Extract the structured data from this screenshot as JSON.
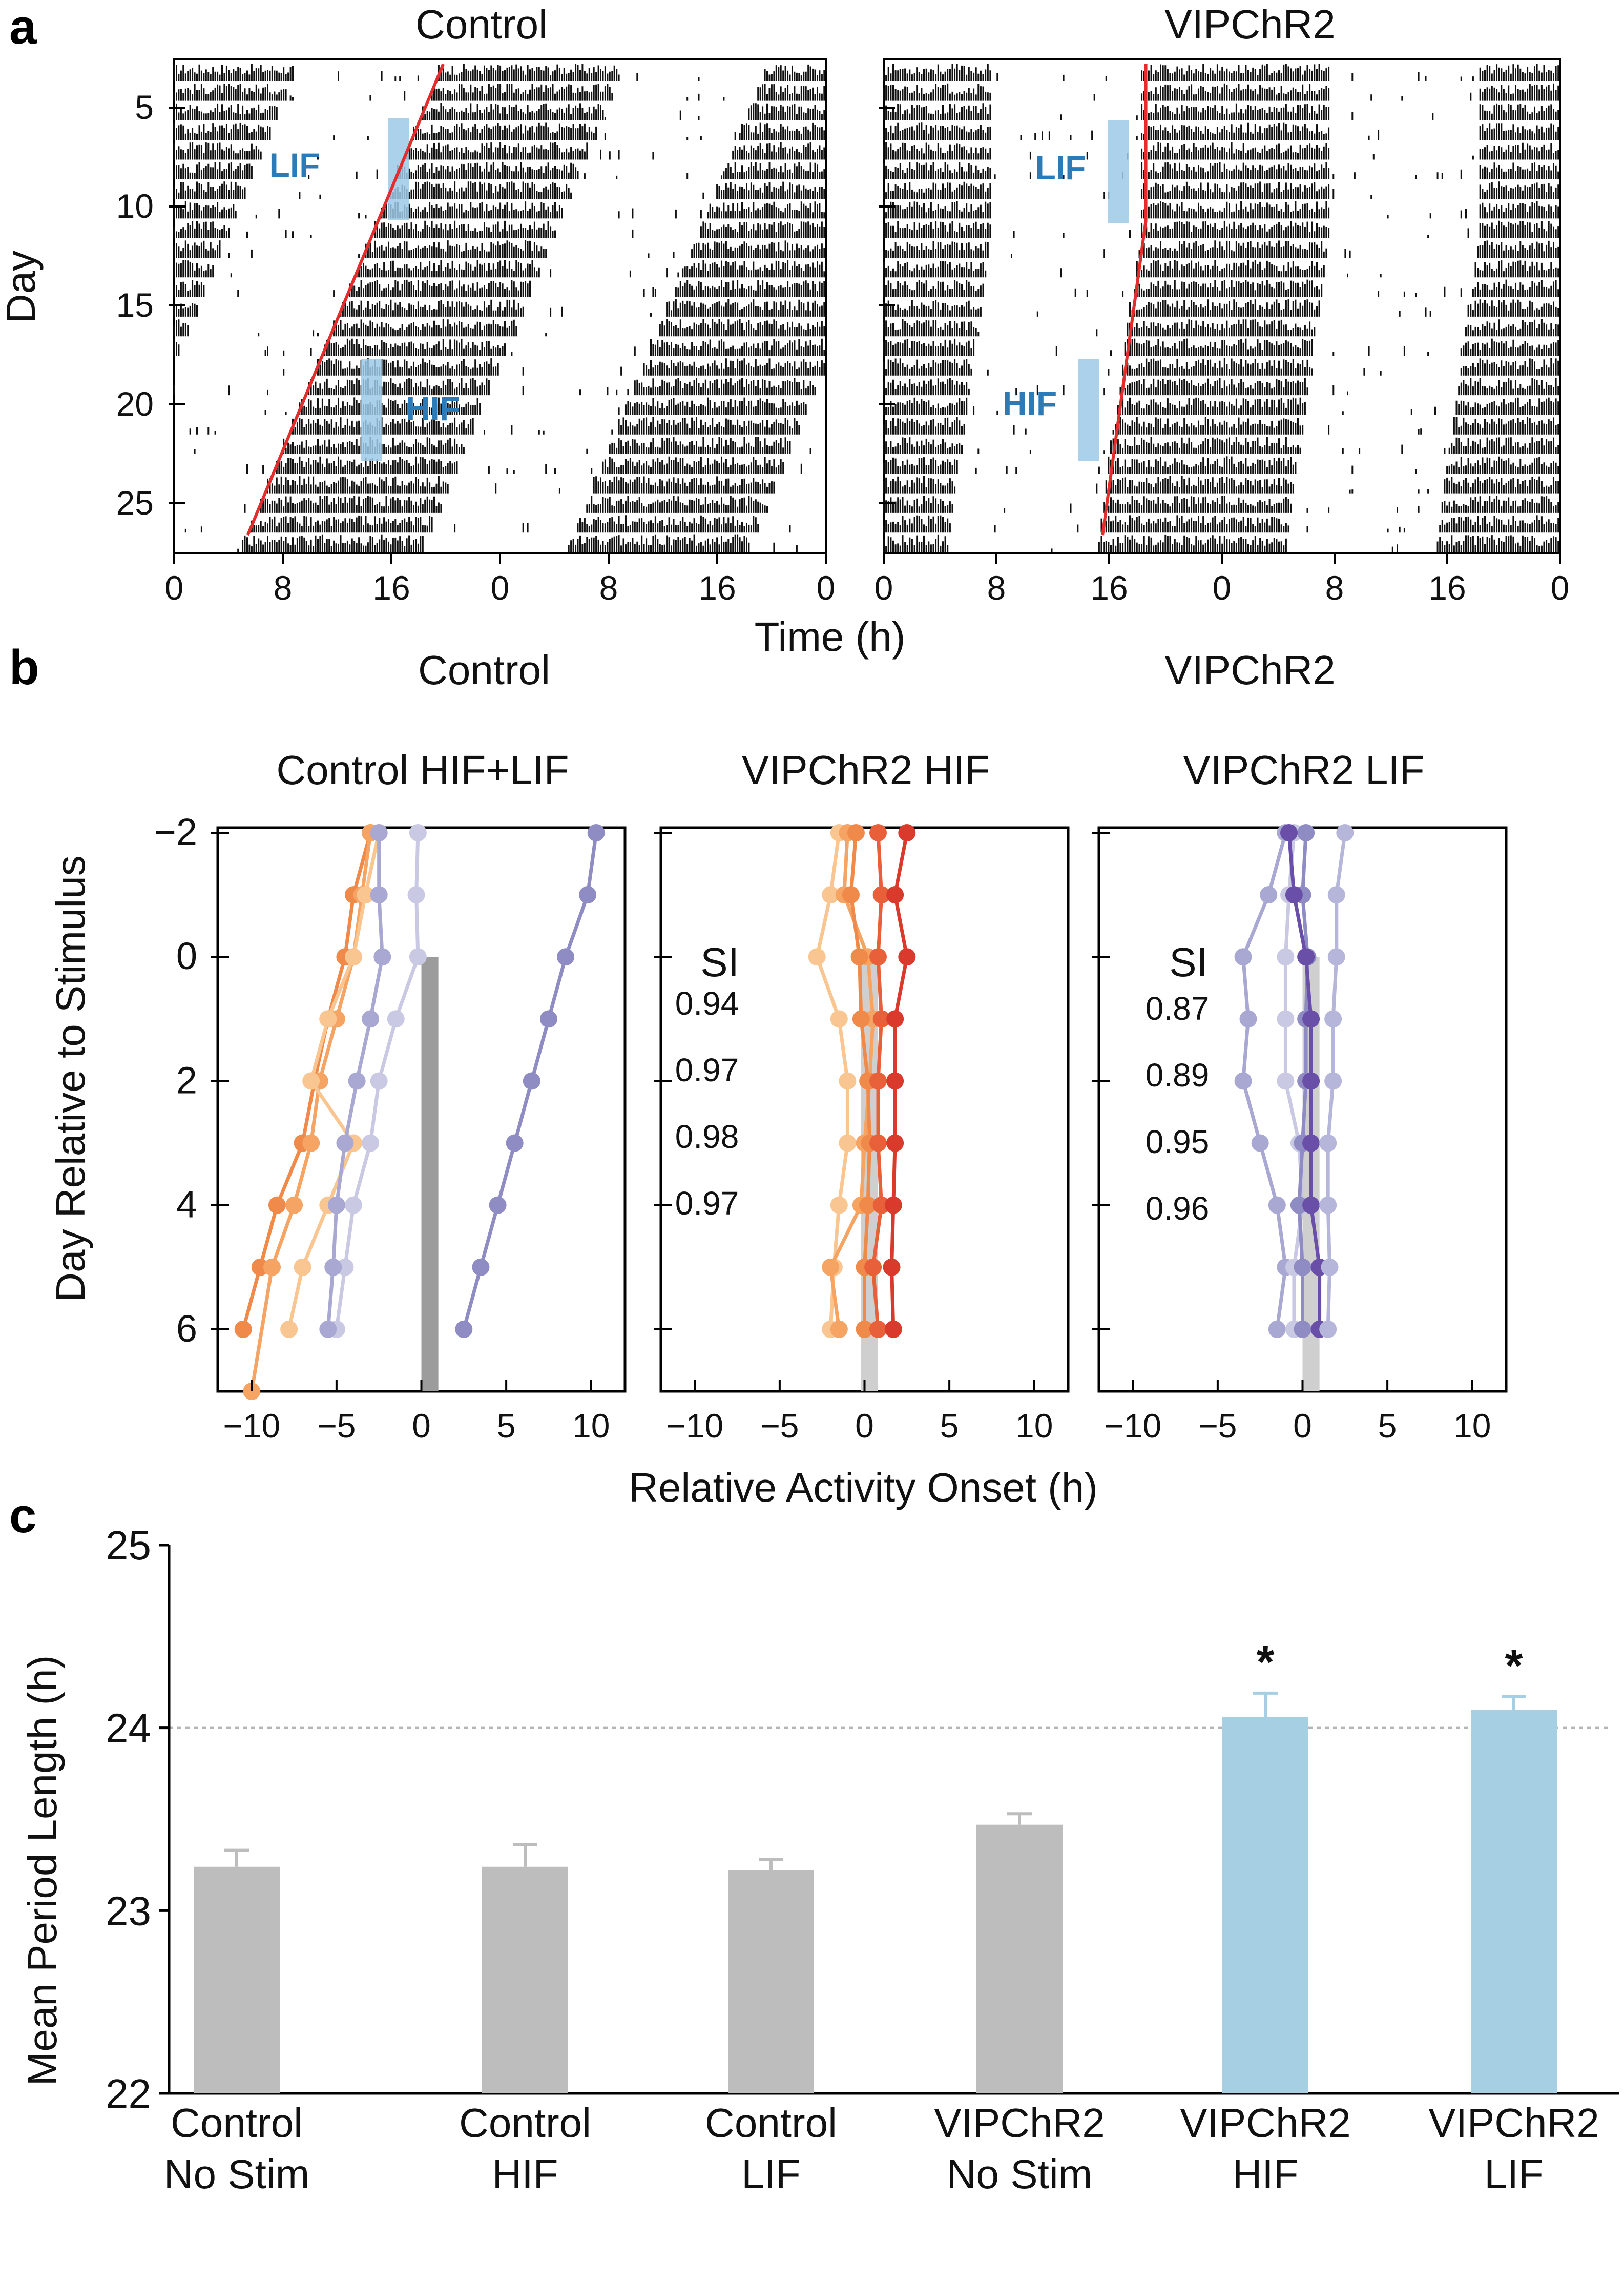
{
  "figure": {
    "panel_a": "a",
    "panel_b": "b",
    "panel_c": "c"
  },
  "panel_a": {
    "titles": [
      "Control",
      "VIPChR2"
    ],
    "ylabel": "Day",
    "xlabel": "Time (h)",
    "x_ticks": [
      "0",
      "8",
      "16",
      "0",
      "8",
      "16",
      "0"
    ],
    "y_ticks": [
      "5",
      "10",
      "15",
      "20",
      "25"
    ],
    "stim_labels": {
      "lif": "LIF",
      "hif": "HIF"
    }
  },
  "panel_b": {
    "group_titles": [
      "Control",
      "VIPChR2"
    ],
    "subplot_titles": [
      "Control HIF+LIF",
      "VIPChR2 HIF",
      "VIPChR2 LIF"
    ],
    "ylabel": "Day Relative to Stimulus",
    "xlabel": "Relative Activity Onset (h)",
    "x_ticks": [
      "−10",
      "−5",
      "0",
      "5",
      "10"
    ],
    "y_ticks": [
      "−2",
      "0",
      "2",
      "4",
      "6"
    ],
    "si_label": "SI",
    "si_hif": [
      "0.94",
      "0.97",
      "0.98",
      "0.97"
    ],
    "si_lif": [
      "0.87",
      "0.89",
      "0.95",
      "0.96"
    ]
  },
  "panel_c_labels": {
    "categories_line1": [
      "Control",
      "Control",
      "Control",
      "VIPChR2",
      "VIPChR2",
      "VIPChR2"
    ],
    "categories_line2": [
      "No Stim",
      "HIF",
      "LIF",
      "No Stim",
      "HIF",
      "LIF"
    ],
    "ylabel": "Mean Period Length (h)",
    "y_ticks": [
      "22",
      "23",
      "24",
      "25"
    ],
    "sig_marker": "*"
  },
  "chart_data": [
    {
      "type": "scatter",
      "panel": "b1",
      "title": "Control HIF+LIF",
      "xlim": [
        -12,
        12
      ],
      "ylim": [
        -2,
        7
      ],
      "stim_bar": {
        "x_from": 0,
        "x_to": 1,
        "y_from": 0,
        "y_to": 7,
        "color": "#9c9c9c"
      },
      "series": [
        {
          "color": "#ef8a4a",
          "x": [
            -3.0,
            -4.0,
            -4.5,
            -5.5,
            -6.3,
            -7.0,
            -8.5,
            -9.5,
            -10.5
          ],
          "y": [
            -2,
            -1,
            0,
            1,
            2,
            3,
            4,
            5,
            6
          ]
        },
        {
          "color": "#f5a463",
          "x": [
            -3.0,
            -3.5,
            -4.0,
            -5.0,
            -6.0,
            -6.5,
            -7.5,
            -8.8,
            -10.0
          ],
          "y": [
            -2,
            -1,
            0,
            1,
            2,
            3,
            4,
            5,
            7
          ]
        },
        {
          "color": "#f9c590",
          "x": [
            -2.5,
            -3.3,
            -4.0,
            -5.5,
            -6.5,
            -4.0,
            -5.5,
            -7.0,
            -7.8
          ],
          "y": [
            -2,
            -1,
            0,
            1,
            2,
            3,
            4,
            5,
            6
          ]
        },
        {
          "color": "#c9c9e4",
          "x": [
            -0.2,
            -0.3,
            -0.2,
            -1.5,
            -2.5,
            -3.0,
            -4.0,
            -4.5,
            -5.0
          ],
          "y": [
            -2,
            -1,
            0,
            1,
            2,
            3,
            4,
            5,
            6
          ]
        },
        {
          "color": "#a8a8d2",
          "x": [
            -2.5,
            -2.5,
            -2.3,
            -3.0,
            -3.8,
            -4.5,
            -5.0,
            -5.2,
            -5.5
          ],
          "y": [
            -2,
            -1,
            0,
            1,
            2,
            3,
            4,
            5,
            6
          ]
        },
        {
          "color": "#8f8cc4",
          "x": [
            10.3,
            9.8,
            8.5,
            7.5,
            6.5,
            5.5,
            4.5,
            3.5,
            2.5
          ],
          "y": [
            -2,
            -1,
            0,
            1,
            2,
            3,
            4,
            5,
            6
          ]
        }
      ]
    },
    {
      "type": "scatter",
      "panel": "b2",
      "title": "VIPChR2 HIF",
      "xlim": [
        -12,
        12
      ],
      "ylim": [
        -2,
        7
      ],
      "stim_bar": {
        "x_from": -0.2,
        "x_to": 0.8,
        "y_from": 0,
        "y_to": 7,
        "color": "#cfcfcf"
      },
      "series": [
        {
          "color": "#f9c590",
          "x": [
            -1.5,
            -2.0,
            -2.8,
            -1.5,
            -1.0,
            -1.0,
            -1.5,
            -1.8,
            -2.0
          ],
          "y": [
            -2,
            -1,
            0,
            1,
            2,
            3,
            4,
            5,
            6
          ]
        },
        {
          "color": "#f5a463",
          "x": [
            -1.0,
            -1.2,
            0.2,
            0.5,
            0.3,
            0.0,
            -0.2,
            -2.0,
            -1.5
          ],
          "y": [
            -2,
            -1,
            0,
            1,
            2,
            3,
            4,
            5,
            6
          ]
        },
        {
          "color": "#ef8a4a",
          "x": [
            -0.5,
            -0.8,
            -0.3,
            -0.2,
            0.2,
            0.3,
            0.2,
            0.0,
            0.0
          ],
          "y": [
            -2,
            -1,
            0,
            1,
            2,
            3,
            4,
            5,
            6
          ]
        },
        {
          "color": "#e8603a",
          "x": [
            0.8,
            1.0,
            0.8,
            1.0,
            0.8,
            0.8,
            1.0,
            0.5,
            0.8
          ],
          "y": [
            -2,
            -1,
            0,
            1,
            2,
            3,
            4,
            5,
            6
          ]
        },
        {
          "color": "#d93a2b",
          "x": [
            2.5,
            1.8,
            2.5,
            1.8,
            1.8,
            1.8,
            1.7,
            1.6,
            1.7
          ],
          "y": [
            -2,
            -1,
            0,
            1,
            2,
            3,
            4,
            5,
            6
          ]
        }
      ]
    },
    {
      "type": "scatter",
      "panel": "b3",
      "title": "VIPChR2 LIF",
      "xlim": [
        -12,
        12
      ],
      "ylim": [
        -2,
        7
      ],
      "stim_bar": {
        "x_from": 0.0,
        "x_to": 1.0,
        "y_from": 0,
        "y_to": 7,
        "color": "#cfcfcf"
      },
      "series": [
        {
          "color": "#a8a8d2",
          "x": [
            -1.0,
            -2.0,
            -3.5,
            -3.2,
            -3.5,
            -2.5,
            -1.5,
            -1.0,
            -1.5
          ],
          "y": [
            -2,
            -1,
            0,
            1,
            2,
            3,
            4,
            5,
            6
          ]
        },
        {
          "color": "#c9c9e4",
          "x": [
            -0.5,
            -0.8,
            -1.0,
            -1.0,
            -1.0,
            -0.2,
            0.0,
            -0.5,
            -0.5
          ],
          "y": [
            -2,
            -1,
            0,
            1,
            2,
            3,
            4,
            5,
            6
          ]
        },
        {
          "color": "#8f8cc4",
          "x": [
            0.2,
            0.0,
            0.3,
            0.2,
            0.2,
            0.0,
            -0.2,
            0.0,
            0.0
          ],
          "y": [
            -2,
            -1,
            0,
            1,
            2,
            3,
            4,
            5,
            6
          ]
        },
        {
          "color": "#6a4fa8",
          "x": [
            -0.8,
            -0.5,
            0.2,
            0.5,
            0.5,
            0.5,
            0.5,
            1.0,
            1.0
          ],
          "y": [
            -2,
            -1,
            0,
            1,
            2,
            3,
            4,
            5,
            6
          ]
        },
        {
          "color": "#b6b6db",
          "x": [
            2.5,
            2.0,
            2.0,
            1.8,
            1.8,
            1.5,
            1.5,
            1.6,
            1.5
          ],
          "y": [
            -2,
            -1,
            0,
            1,
            2,
            3,
            4,
            5,
            6
          ]
        }
      ]
    },
    {
      "type": "bar",
      "panel": "c",
      "categories": [
        "Control No Stim",
        "Control HIF",
        "Control LIF",
        "VIPChR2 No Stim",
        "VIPChR2 HIF",
        "VIPChR2 LIF"
      ],
      "values": [
        23.24,
        23.24,
        23.22,
        23.47,
        24.06,
        24.1
      ],
      "errors": [
        0.09,
        0.12,
        0.06,
        0.06,
        0.13,
        0.07
      ],
      "colors": [
        "#bdbdbd",
        "#bdbdbd",
        "#bdbdbd",
        "#bdbdbd",
        "#a6cfe3",
        "#a6cfe3"
      ],
      "significant": [
        false,
        false,
        false,
        false,
        true,
        true
      ],
      "ylabel": "Mean Period Length (h)",
      "ylim": [
        22,
        25
      ],
      "reference_line": 24,
      "grid": false
    }
  ]
}
